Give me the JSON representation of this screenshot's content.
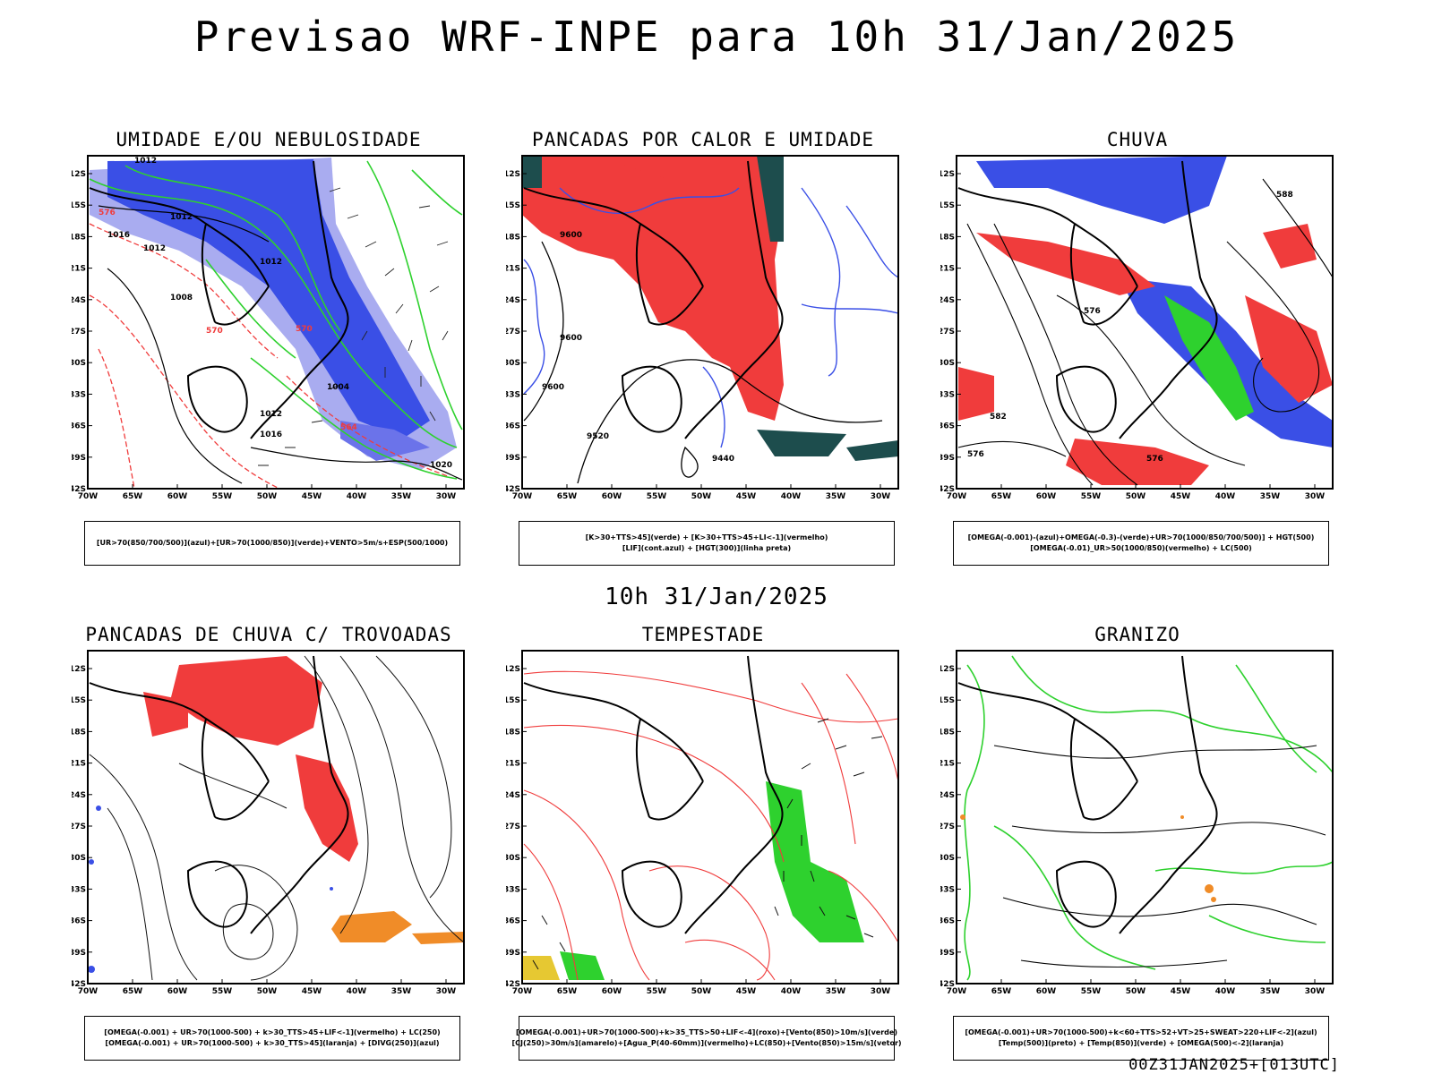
{
  "title": "Previsao WRF-INPE  para 10h 31/Jan/2025",
  "mid_time": "10h 31/Jan/2025",
  "footer": "00Z31JAN2025+[013UTC]",
  "axes": {
    "lat_labels": [
      "12S",
      "15S",
      "18S",
      "21S",
      "24S",
      "27S",
      "30S",
      "33S",
      "36S",
      "39S",
      "42S"
    ],
    "lon_labels": [
      "70W",
      "65W",
      "60W",
      "55W",
      "50W",
      "45W",
      "40W",
      "35W",
      "30W"
    ]
  },
  "colors": {
    "red": "#f03c3c",
    "blue": "#3a4fe6",
    "lightblue": "#a9acf0",
    "green": "#2ed12e",
    "orange": "#f08c28",
    "darkteal": "#1d4d4d",
    "yellow": "#e6c832"
  },
  "panels": [
    {
      "title": "UMIDADE E/OU NEBULOSIDADE",
      "legend": [
        "[UR>70(850/700/500)](azul)+[UR>70(1000/850)](verde)+VENTO>5m/s+ESP(500/1000)"
      ]
    },
    {
      "title": "PANCADAS POR CALOR E UMIDADE",
      "legend": [
        "[K>30+TTS>45](verde) + [K>30+TTS>45+LI<-1](vermelho)",
        "[LIF](cont.azul) + [HGT(300)](linha preta)"
      ]
    },
    {
      "title": "CHUVA",
      "legend": [
        "[OMEGA(-0.001)-(azul)+OMEGA(-0.3)-(verde)+UR>70(1000/850/700/500)] + HGT(500)",
        "[OMEGA(-0.01)_UR>50(1000/850)(vermelho) + LC(500)"
      ]
    },
    {
      "title": "PANCADAS DE CHUVA C/ TROVOADAS",
      "legend": [
        "[OMEGA(-0.001) + UR>70(1000-500) + k>30_TTS>45+LIF<-1](vermelho) + LC(250)",
        "[OMEGA(-0.001) + UR>70(1000-500) + k>30_TTS>45](laranja) + [DIVG(250)](azul)"
      ]
    },
    {
      "title": "TEMPESTADE",
      "legend": [
        "[OMEGA(-0.001)+UR>70(1000-500)+k>35_TTS>50+LIF<-4](roxo)+[Vento(850)>10m/s](verde)",
        "[CJ(250)>30m/s](amarelo)+[Agua_P(40-60mm)](vermelho)+LC(850)+[Vento(850)>15m/s](vetor)"
      ]
    },
    {
      "title": "GRANIZO",
      "legend": [
        "[OMEGA(-0.001)+UR>70(1000-500)+k<60+TTS>52+VT>25+SWEAT>220+LIF<-2](azul)",
        "[Temp(500)](preto) + [Temp(850)](verde) + [OMEGA(500)<-2](laranja)"
      ]
    }
  ],
  "contour_labels": {
    "p1": [
      "1012",
      "1012",
      "1016",
      "1012",
      "1008",
      "1012",
      "1004",
      "1012",
      "1016",
      "1020",
      "576",
      "570",
      "570",
      "564"
    ],
    "p2": [
      "9600",
      "9600",
      "9600",
      "9520",
      "9440"
    ],
    "p3": [
      "588",
      "582",
      "576",
      "576",
      "576"
    ]
  }
}
